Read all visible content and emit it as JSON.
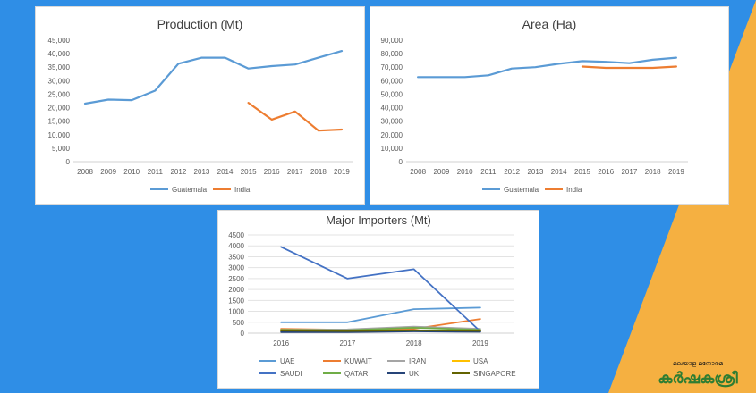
{
  "colors": {
    "background": "#2f8ee6",
    "accent": "#f5b041",
    "panel": "#ffffff"
  },
  "chart_data": [
    {
      "type": "line",
      "title": "Production (Mt)",
      "categories": [
        "2008",
        "2009",
        "2010",
        "2011",
        "2012",
        "2013",
        "2014",
        "2015",
        "2016",
        "2017",
        "2018",
        "2019"
      ],
      "ylim": [
        0,
        45000
      ],
      "yticks": [
        "0",
        "5,000",
        "10,000",
        "15,000",
        "20,000",
        "25,000",
        "30,000",
        "35,000",
        "40,000",
        "45,000"
      ],
      "legend": "bottom",
      "series": [
        {
          "name": "Guatemala",
          "color": "#5b9bd5",
          "values": [
            21500,
            23000,
            22800,
            26300,
            36300,
            38500,
            38500,
            34500,
            35400,
            36000,
            38500,
            41000
          ]
        },
        {
          "name": "India",
          "color": "#ed7d31",
          "values": [
            null,
            null,
            null,
            null,
            null,
            null,
            null,
            21800,
            15600,
            18600,
            11500,
            11900
          ]
        }
      ]
    },
    {
      "type": "line",
      "title": "Area (Ha)",
      "categories": [
        "2008",
        "2009",
        "2010",
        "2011",
        "2012",
        "2013",
        "2014",
        "2015",
        "2016",
        "2017",
        "2018",
        "2019"
      ],
      "ylim": [
        0,
        90000
      ],
      "yticks": [
        "0",
        "10,000",
        "20,000",
        "30,000",
        "40,000",
        "50,000",
        "60,000",
        "70,000",
        "80,000",
        "90,000"
      ],
      "legend": "bottom",
      "series": [
        {
          "name": "Guatemala",
          "color": "#5b9bd5",
          "values": [
            62700,
            62700,
            62700,
            64000,
            69000,
            70000,
            72500,
            74500,
            74000,
            73000,
            75500,
            77000
          ]
        },
        {
          "name": "India",
          "color": "#ed7d31",
          "values": [
            null,
            null,
            null,
            null,
            null,
            null,
            null,
            70500,
            69500,
            69500,
            69500,
            70500
          ]
        }
      ]
    },
    {
      "type": "line",
      "title": "Major Importers (Mt)",
      "categories": [
        "2016",
        "2017",
        "2018",
        "2019"
      ],
      "ylim": [
        0,
        4500
      ],
      "yticks": [
        "0",
        "500",
        "1000",
        "1500",
        "2000",
        "2500",
        "3000",
        "3500",
        "4000",
        "4500"
      ],
      "legend": "bottom",
      "series": [
        {
          "name": "UAE",
          "color": "#5b9bd5",
          "values": [
            500,
            500,
            1100,
            1170
          ]
        },
        {
          "name": "KUWAIT",
          "color": "#ed7d31",
          "values": [
            200,
            150,
            200,
            650
          ]
        },
        {
          "name": "IRAN",
          "color": "#a5a5a5",
          "values": [
            150,
            170,
            300,
            200
          ]
        },
        {
          "name": "USA",
          "color": "#ffc000",
          "values": [
            100,
            100,
            100,
            100
          ]
        },
        {
          "name": "SAUDI",
          "color": "#4472c4",
          "values": [
            3950,
            2500,
            2930,
            80
          ]
        },
        {
          "name": "QATAR",
          "color": "#70ad47",
          "values": [
            150,
            130,
            250,
            150
          ]
        },
        {
          "name": "UK",
          "color": "#264478",
          "values": [
            50,
            50,
            80,
            60
          ]
        },
        {
          "name": "SINGAPORE",
          "color": "#636300",
          "values": [
            120,
            100,
            130,
            110
          ]
        }
      ]
    }
  ],
  "logo": {
    "small_text": "മലയാള മനോരമ",
    "main_text": "കർഷകശ്രീ"
  }
}
